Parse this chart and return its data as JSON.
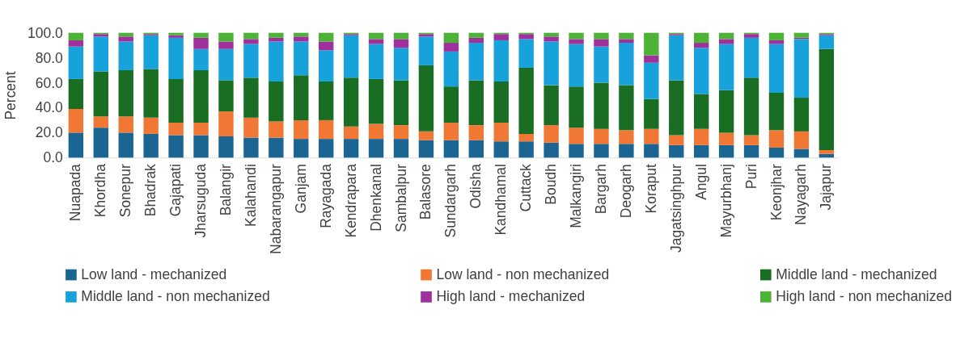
{
  "chart_data": {
    "type": "bar",
    "stacked": true,
    "ylabel": "Percent",
    "legend": "bottom",
    "grid": false,
    "categories": [
      "Nuapada",
      "Khordha",
      "Sonepur",
      "Bhadrak",
      "Gajapati",
      "Jharsuguda",
      "Balangir",
      "Kalahandi",
      "Nabarangapur",
      "Ganjam",
      "Rayagada",
      "Kendrapara",
      "Dhenkanal",
      "Sambalpur",
      "Balasore",
      "Sundargarh",
      "Odisha",
      "Kandhamal",
      "Cuttack",
      "Boudh",
      "Malkangiri",
      "Bargarh",
      "Deogarh",
      "Koraput",
      "Jagatsinghpur",
      "Angul",
      "Mayurbhanj",
      "Puri",
      "Keonjhar",
      "Nayagarh",
      "Jajapur"
    ],
    "ylim": [
      0,
      100
    ],
    "yticks": [
      {
        "value": 0,
        "label": "0.0"
      },
      {
        "value": 20,
        "label": "20.0"
      },
      {
        "value": 40,
        "label": "40.0"
      },
      {
        "value": 60,
        "label": "60.0"
      },
      {
        "value": 80,
        "label": "80.0"
      },
      {
        "value": 100,
        "label": "100.0"
      }
    ],
    "series": [
      {
        "name": "Low land - mechanized",
        "color": "#1b6592",
        "values": [
          20,
          24,
          20,
          19,
          18,
          18,
          17,
          16,
          16,
          15,
          15,
          15,
          15,
          15,
          14,
          14,
          14,
          13,
          13,
          12,
          11,
          11,
          11,
          11,
          10,
          10,
          10,
          10,
          8,
          7,
          3
        ]
      },
      {
        "name": "Low land - non mechanized",
        "color": "#f07834",
        "values": [
          19,
          9,
          13,
          13,
          10,
          10,
          20,
          16,
          13,
          15,
          15,
          10,
          12,
          11,
          7,
          14,
          12,
          15,
          6,
          14,
          13,
          12,
          11,
          12,
          8,
          13,
          10,
          8,
          14,
          14,
          3
        ]
      },
      {
        "name": "Middle land - mechanized",
        "color": "#1a6e23",
        "values": [
          24,
          36,
          37,
          39,
          35,
          42,
          25,
          32,
          32,
          36,
          31,
          39,
          36,
          36,
          53,
          29,
          36,
          33,
          53,
          32,
          33,
          37,
          36,
          24,
          44,
          28,
          34,
          46,
          30,
          27,
          81
        ]
      },
      {
        "name": "Middle land - non mechanized",
        "color": "#17a2dc",
        "values": [
          26,
          28,
          23,
          27,
          33,
          17,
          25,
          27,
          32,
          27,
          25,
          34,
          28,
          26,
          23,
          28,
          30,
          33,
          23,
          35,
          34,
          29,
          34,
          29,
          36,
          37,
          37,
          32,
          39,
          47,
          11
        ]
      },
      {
        "name": "High land - mechanized",
        "color": "#a0309c",
        "values": [
          5,
          2,
          4,
          1,
          2,
          9,
          6,
          4,
          3,
          4,
          7,
          1,
          4,
          7,
          2,
          7,
          4,
          5,
          4,
          4,
          4,
          6,
          3,
          6,
          1,
          4,
          4,
          3,
          3,
          1,
          1
        ]
      },
      {
        "name": "High land - non mechanized",
        "color": "#4db337",
        "values": [
          6,
          1,
          3,
          1,
          2,
          4,
          7,
          5,
          4,
          3,
          7,
          1,
          5,
          5,
          1,
          8,
          4,
          1,
          1,
          3,
          5,
          5,
          5,
          18,
          1,
          8,
          5,
          1,
          6,
          4,
          1
        ]
      }
    ]
  }
}
